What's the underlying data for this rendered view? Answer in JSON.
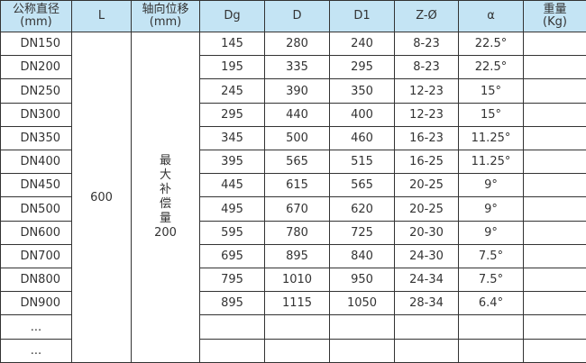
{
  "headers": [
    {
      "line1": "公称直径",
      "line2": "(mm)"
    },
    {
      "line1": "L",
      "line2": ""
    },
    {
      "line1": "轴向位移",
      "line2": "(mm)"
    },
    {
      "line1": "Dg",
      "line2": ""
    },
    {
      "line1": "D",
      "line2": ""
    },
    {
      "line1": "D1",
      "line2": ""
    },
    {
      "line1": "Z-Ø",
      "line2": ""
    },
    {
      "line1": "α",
      "line2": ""
    },
    {
      "line1": "重量",
      "line2": "(Kg)"
    }
  ],
  "L_value": "600",
  "axial": {
    "chars": [
      "最",
      "大",
      "补",
      "偿",
      "量"
    ],
    "value": "200"
  },
  "rows": [
    {
      "dn": "DN150",
      "dg": "145",
      "d": "280",
      "d1": "240",
      "z": "8-23",
      "a": "22.5°",
      "w": ""
    },
    {
      "dn": "DN200",
      "dg": "195",
      "d": "335",
      "d1": "295",
      "z": "8-23",
      "a": "22.5°",
      "w": ""
    },
    {
      "dn": "DN250",
      "dg": "245",
      "d": "390",
      "d1": "350",
      "z": "12-23",
      "a": "15°",
      "w": ""
    },
    {
      "dn": "DN300",
      "dg": "295",
      "d": "440",
      "d1": "400",
      "z": "12-23",
      "a": "15°",
      "w": ""
    },
    {
      "dn": "DN350",
      "dg": "345",
      "d": "500",
      "d1": "460",
      "z": "16-23",
      "a": "11.25°",
      "w": ""
    },
    {
      "dn": "DN400",
      "dg": "395",
      "d": "565",
      "d1": "515",
      "z": "16-25",
      "a": "11.25°",
      "w": ""
    },
    {
      "dn": "DN450",
      "dg": "445",
      "d": "615",
      "d1": "565",
      "z": "20-25",
      "a": "9°",
      "w": ""
    },
    {
      "dn": "DN500",
      "dg": "495",
      "d": "670",
      "d1": "620",
      "z": "20-25",
      "a": "9°",
      "w": ""
    },
    {
      "dn": "DN600",
      "dg": "595",
      "d": "780",
      "d1": "725",
      "z": "20-30",
      "a": "9°",
      "w": ""
    },
    {
      "dn": "DN700",
      "dg": "695",
      "d": "895",
      "d1": "840",
      "z": "24-30",
      "a": "7.5°",
      "w": ""
    },
    {
      "dn": "DN800",
      "dg": "795",
      "d": "1010",
      "d1": "950",
      "z": "24-34",
      "a": "7.5°",
      "w": ""
    },
    {
      "dn": "DN900",
      "dg": "895",
      "d": "1115",
      "d1": "1050",
      "z": "28-34",
      "a": "6.4°",
      "w": ""
    },
    {
      "dn": "...",
      "dg": "",
      "d": "",
      "d1": "",
      "z": "",
      "a": "",
      "w": ""
    },
    {
      "dn": "...",
      "dg": "",
      "d": "",
      "d1": "",
      "z": "",
      "a": "",
      "w": ""
    }
  ]
}
